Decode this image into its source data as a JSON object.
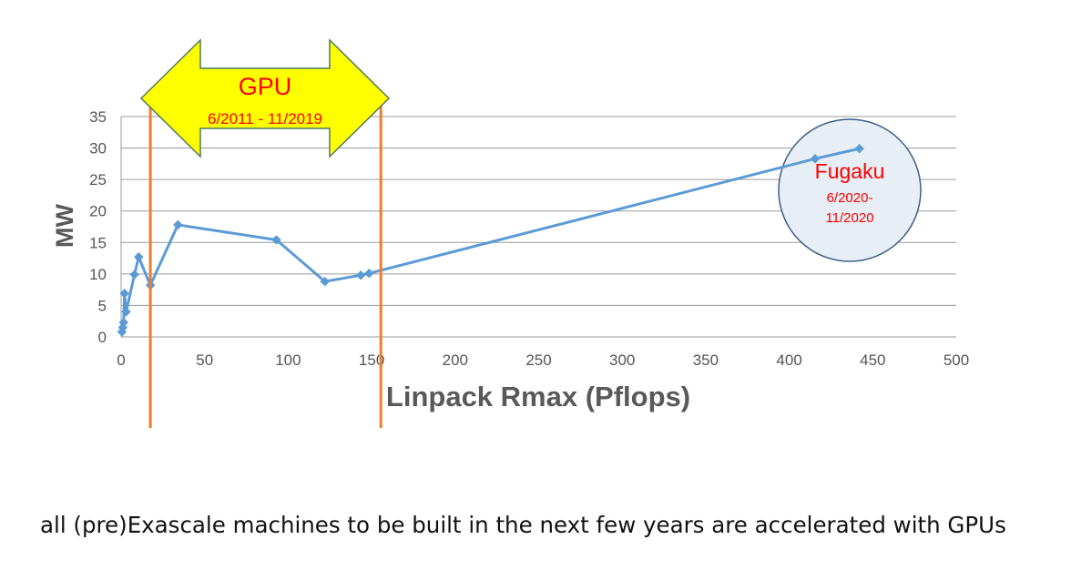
{
  "chart_data": {
    "type": "scatter",
    "xlabel": "Linpack Rmax (Pflops)",
    "ylabel": "MW",
    "xlim": [
      0,
      500
    ],
    "ylim": [
      0,
      35
    ],
    "x_ticks": [
      0,
      50,
      100,
      150,
      200,
      250,
      300,
      350,
      400,
      450,
      500
    ],
    "y_ticks": [
      0,
      5,
      10,
      15,
      20,
      25,
      30,
      35
    ],
    "grid": "horizontal",
    "series": [
      {
        "color": "#5B9BD5",
        "marker": "diamond",
        "line": true,
        "points": [
          {
            "x": 0.5,
            "y": 0.8
          },
          {
            "x": 1.0,
            "y": 1.5
          },
          {
            "x": 1.5,
            "y": 2.3
          },
          {
            "x": 2.0,
            "y": 6.9
          },
          {
            "x": 3.0,
            "y": 4.0
          },
          {
            "x": 8.0,
            "y": 9.9
          },
          {
            "x": 10.5,
            "y": 12.7
          },
          {
            "x": 17.5,
            "y": 8.2
          },
          {
            "x": 34.0,
            "y": 17.8
          },
          {
            "x": 93.0,
            "y": 15.4
          },
          {
            "x": 122.0,
            "y": 8.8
          },
          {
            "x": 143.5,
            "y": 9.8
          },
          {
            "x": 148.5,
            "y": 10.1
          },
          {
            "x": 415.5,
            "y": 28.3
          },
          {
            "x": 442.0,
            "y": 29.9
          }
        ]
      }
    ],
    "vertical_lines": [
      {
        "x": 17.5,
        "color": "#ED7D31"
      },
      {
        "x": 155.5,
        "color": "#ED7D31"
      }
    ],
    "annotations": {
      "gpu_arrow": {
        "title": "GPU",
        "range": "6/2011 - 11/2019",
        "fill": "#FFFF00",
        "border": "#4E7A5C",
        "text_color": "#FF0000"
      },
      "fugaku_circle": {
        "title": "Fugaku",
        "line1": "6/2020-",
        "line2": "11/2020",
        "border": "#3A5F86",
        "fill": "#E8EEF5",
        "text_color": "#FF0000"
      }
    }
  },
  "caption": "all (pre)Exascale machines to be built in the next few years are accelerated with GPUs"
}
